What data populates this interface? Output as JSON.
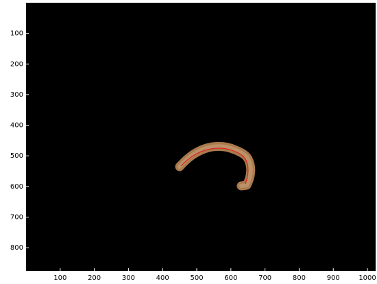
{
  "chart_data": {
    "type": "image",
    "xlim": [
      0,
      1024
    ],
    "ylim": [
      0,
      876
    ],
    "y_reversed": true,
    "xticks": [
      100,
      200,
      300,
      400,
      500,
      600,
      700,
      800,
      900,
      1000
    ],
    "yticks": [
      100,
      200,
      300,
      400,
      500,
      600,
      700,
      800
    ]
  }
}
